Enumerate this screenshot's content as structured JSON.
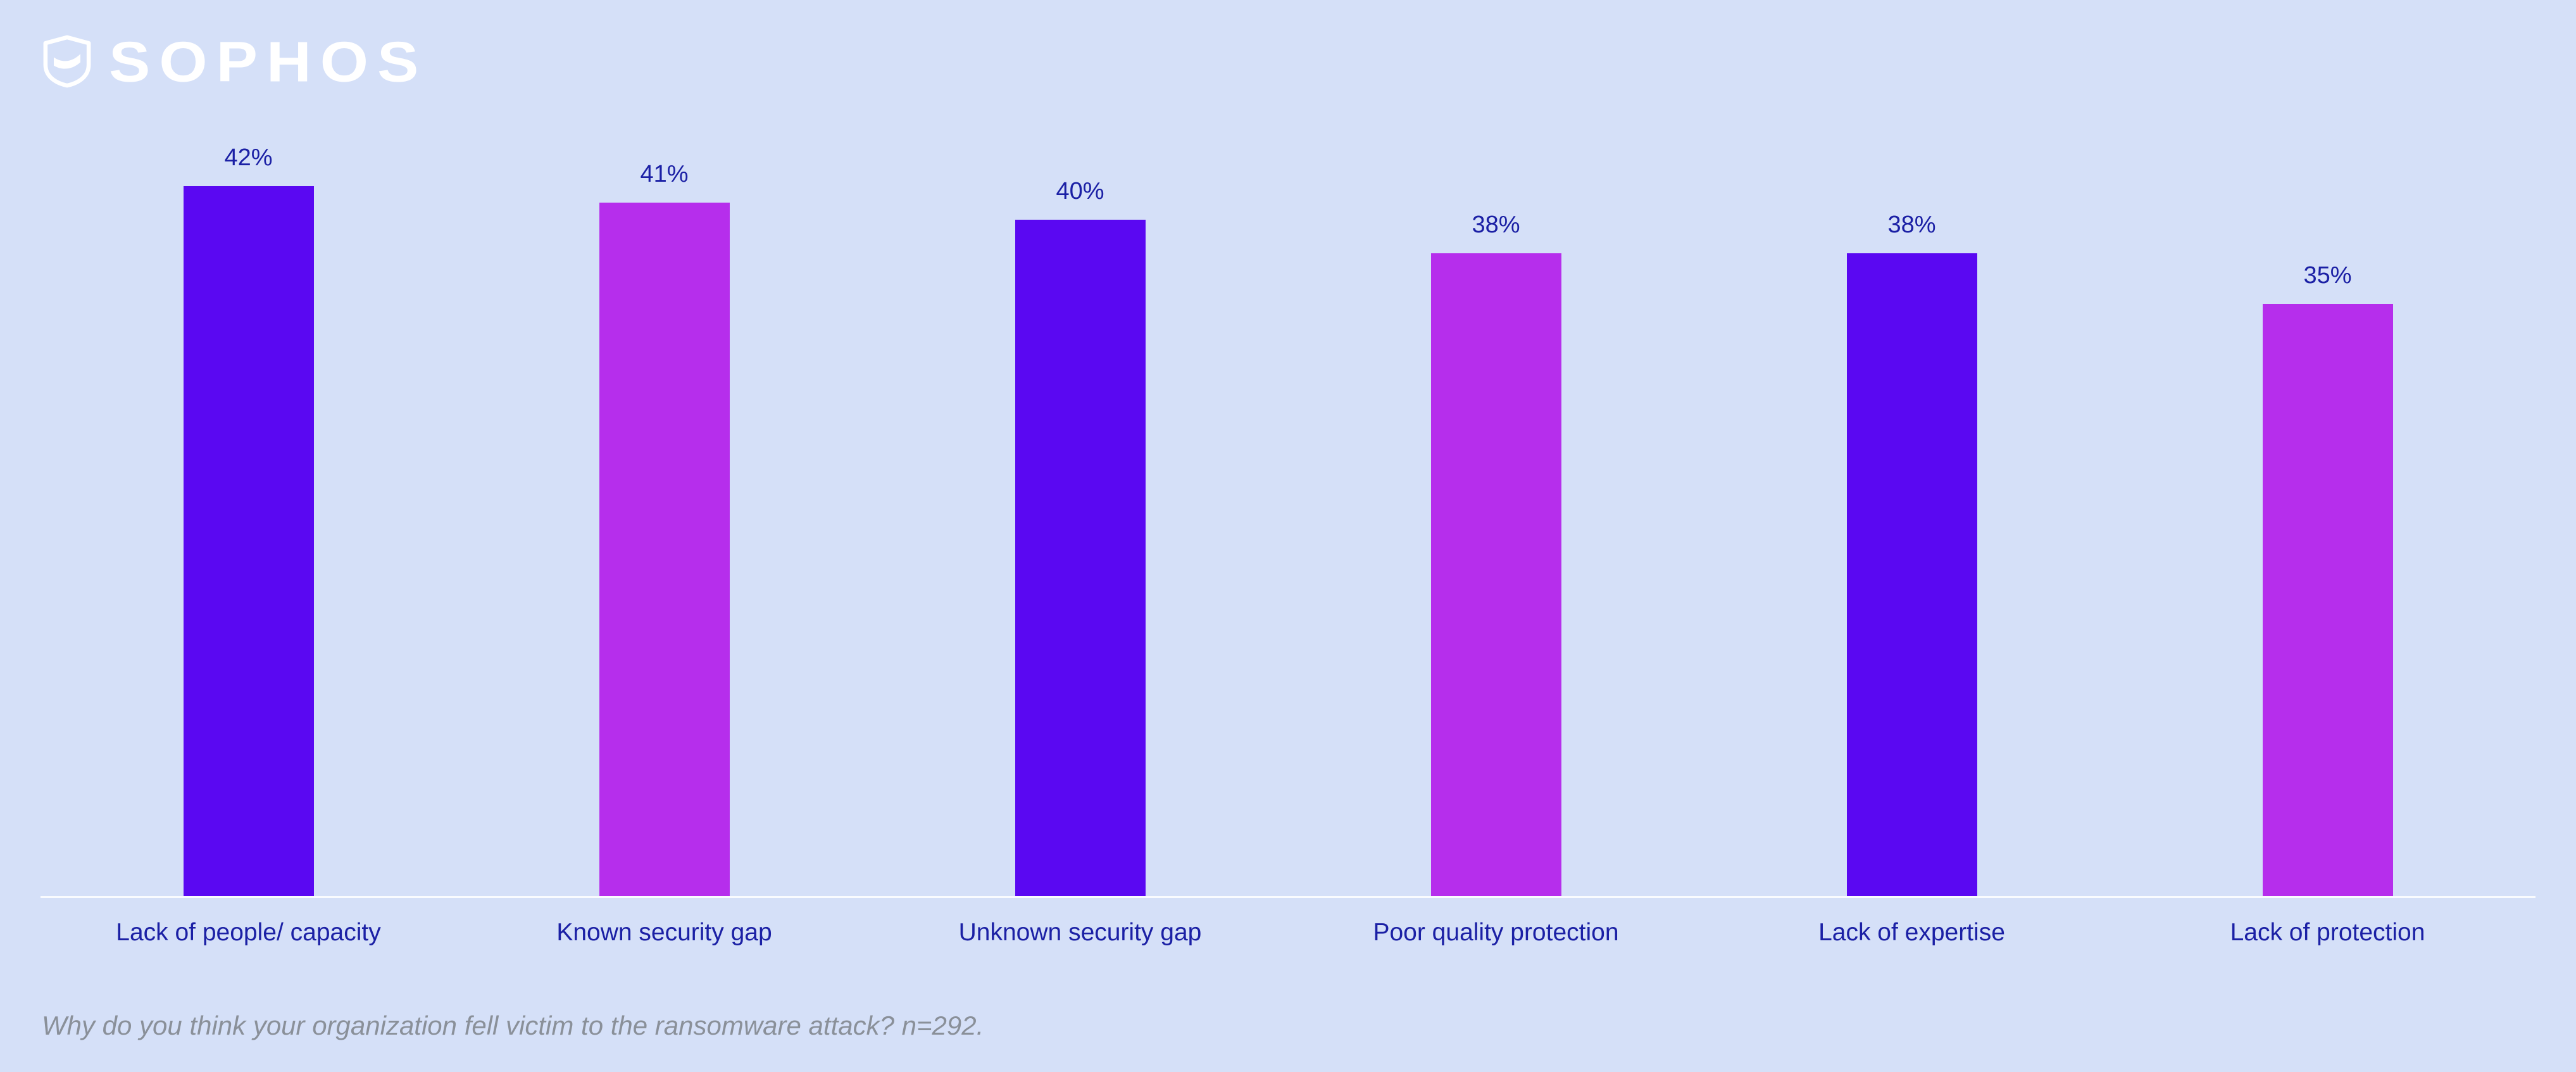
{
  "header": {
    "logo_text": "SOPHOS",
    "logo_icon": "sophos-shield-icon"
  },
  "chart_data": {
    "type": "bar",
    "title": "",
    "categories": [
      "Lack of people/ capacity",
      "Known security gap",
      "Unknown security gap",
      "Poor quality protection",
      "Lack of expertise",
      "Lack of protection"
    ],
    "values": [
      42,
      41,
      40,
      38,
      38,
      35
    ],
    "value_labels": [
      "42%",
      "41%",
      "40%",
      "38%",
      "38%",
      "35%"
    ],
    "bar_colors": [
      "#5A08F2",
      "#B62EEC",
      "#5A08F2",
      "#B62EEC",
      "#5A08F2",
      "#B62EEC"
    ],
    "xlabel": "",
    "ylabel": "",
    "ylim": [
      0,
      45
    ],
    "grid": false,
    "legend": "none"
  },
  "caption": "Why do you think your organization fell victim to the ransomware attack? n=292.",
  "colors": {
    "background": "#D5E0F8",
    "violet": "#5A08F2",
    "magenta": "#B62EEC",
    "label_text": "#1B20A5",
    "caption_text": "#8A9099",
    "axis_line": "#FFFFFF"
  }
}
